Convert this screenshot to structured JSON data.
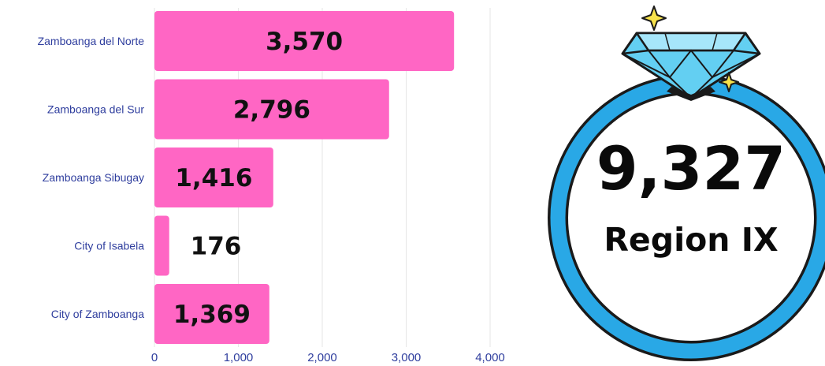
{
  "chart_data": {
    "type": "bar",
    "orientation": "horizontal",
    "categories": [
      "Zamboanga del Norte",
      "Zamboanga del Sur",
      "Zamboanga Sibugay",
      "City of Isabela",
      "City of Zamboanga"
    ],
    "values": [
      3570,
      2796,
      1416,
      176,
      1369
    ],
    "value_labels": [
      "3,570",
      "2,796",
      "1,416",
      "176",
      "1,369"
    ],
    "xlim": [
      0,
      4000
    ],
    "xticks": [
      0,
      1000,
      2000,
      3000,
      4000
    ],
    "xtick_labels": [
      "0",
      "1,000",
      "2,000",
      "3,000",
      "4,000"
    ],
    "grid": true,
    "bar_color": "#ff66c4",
    "label_color": "#2f3e9e"
  },
  "summary": {
    "total": "9,327",
    "region": "Region IX"
  },
  "graphic": {
    "ring_color": "#29a8e6",
    "gem_color": "#63cff2",
    "sparkle_color": "#f7e24b",
    "icon": "diamond-ring-icon"
  }
}
